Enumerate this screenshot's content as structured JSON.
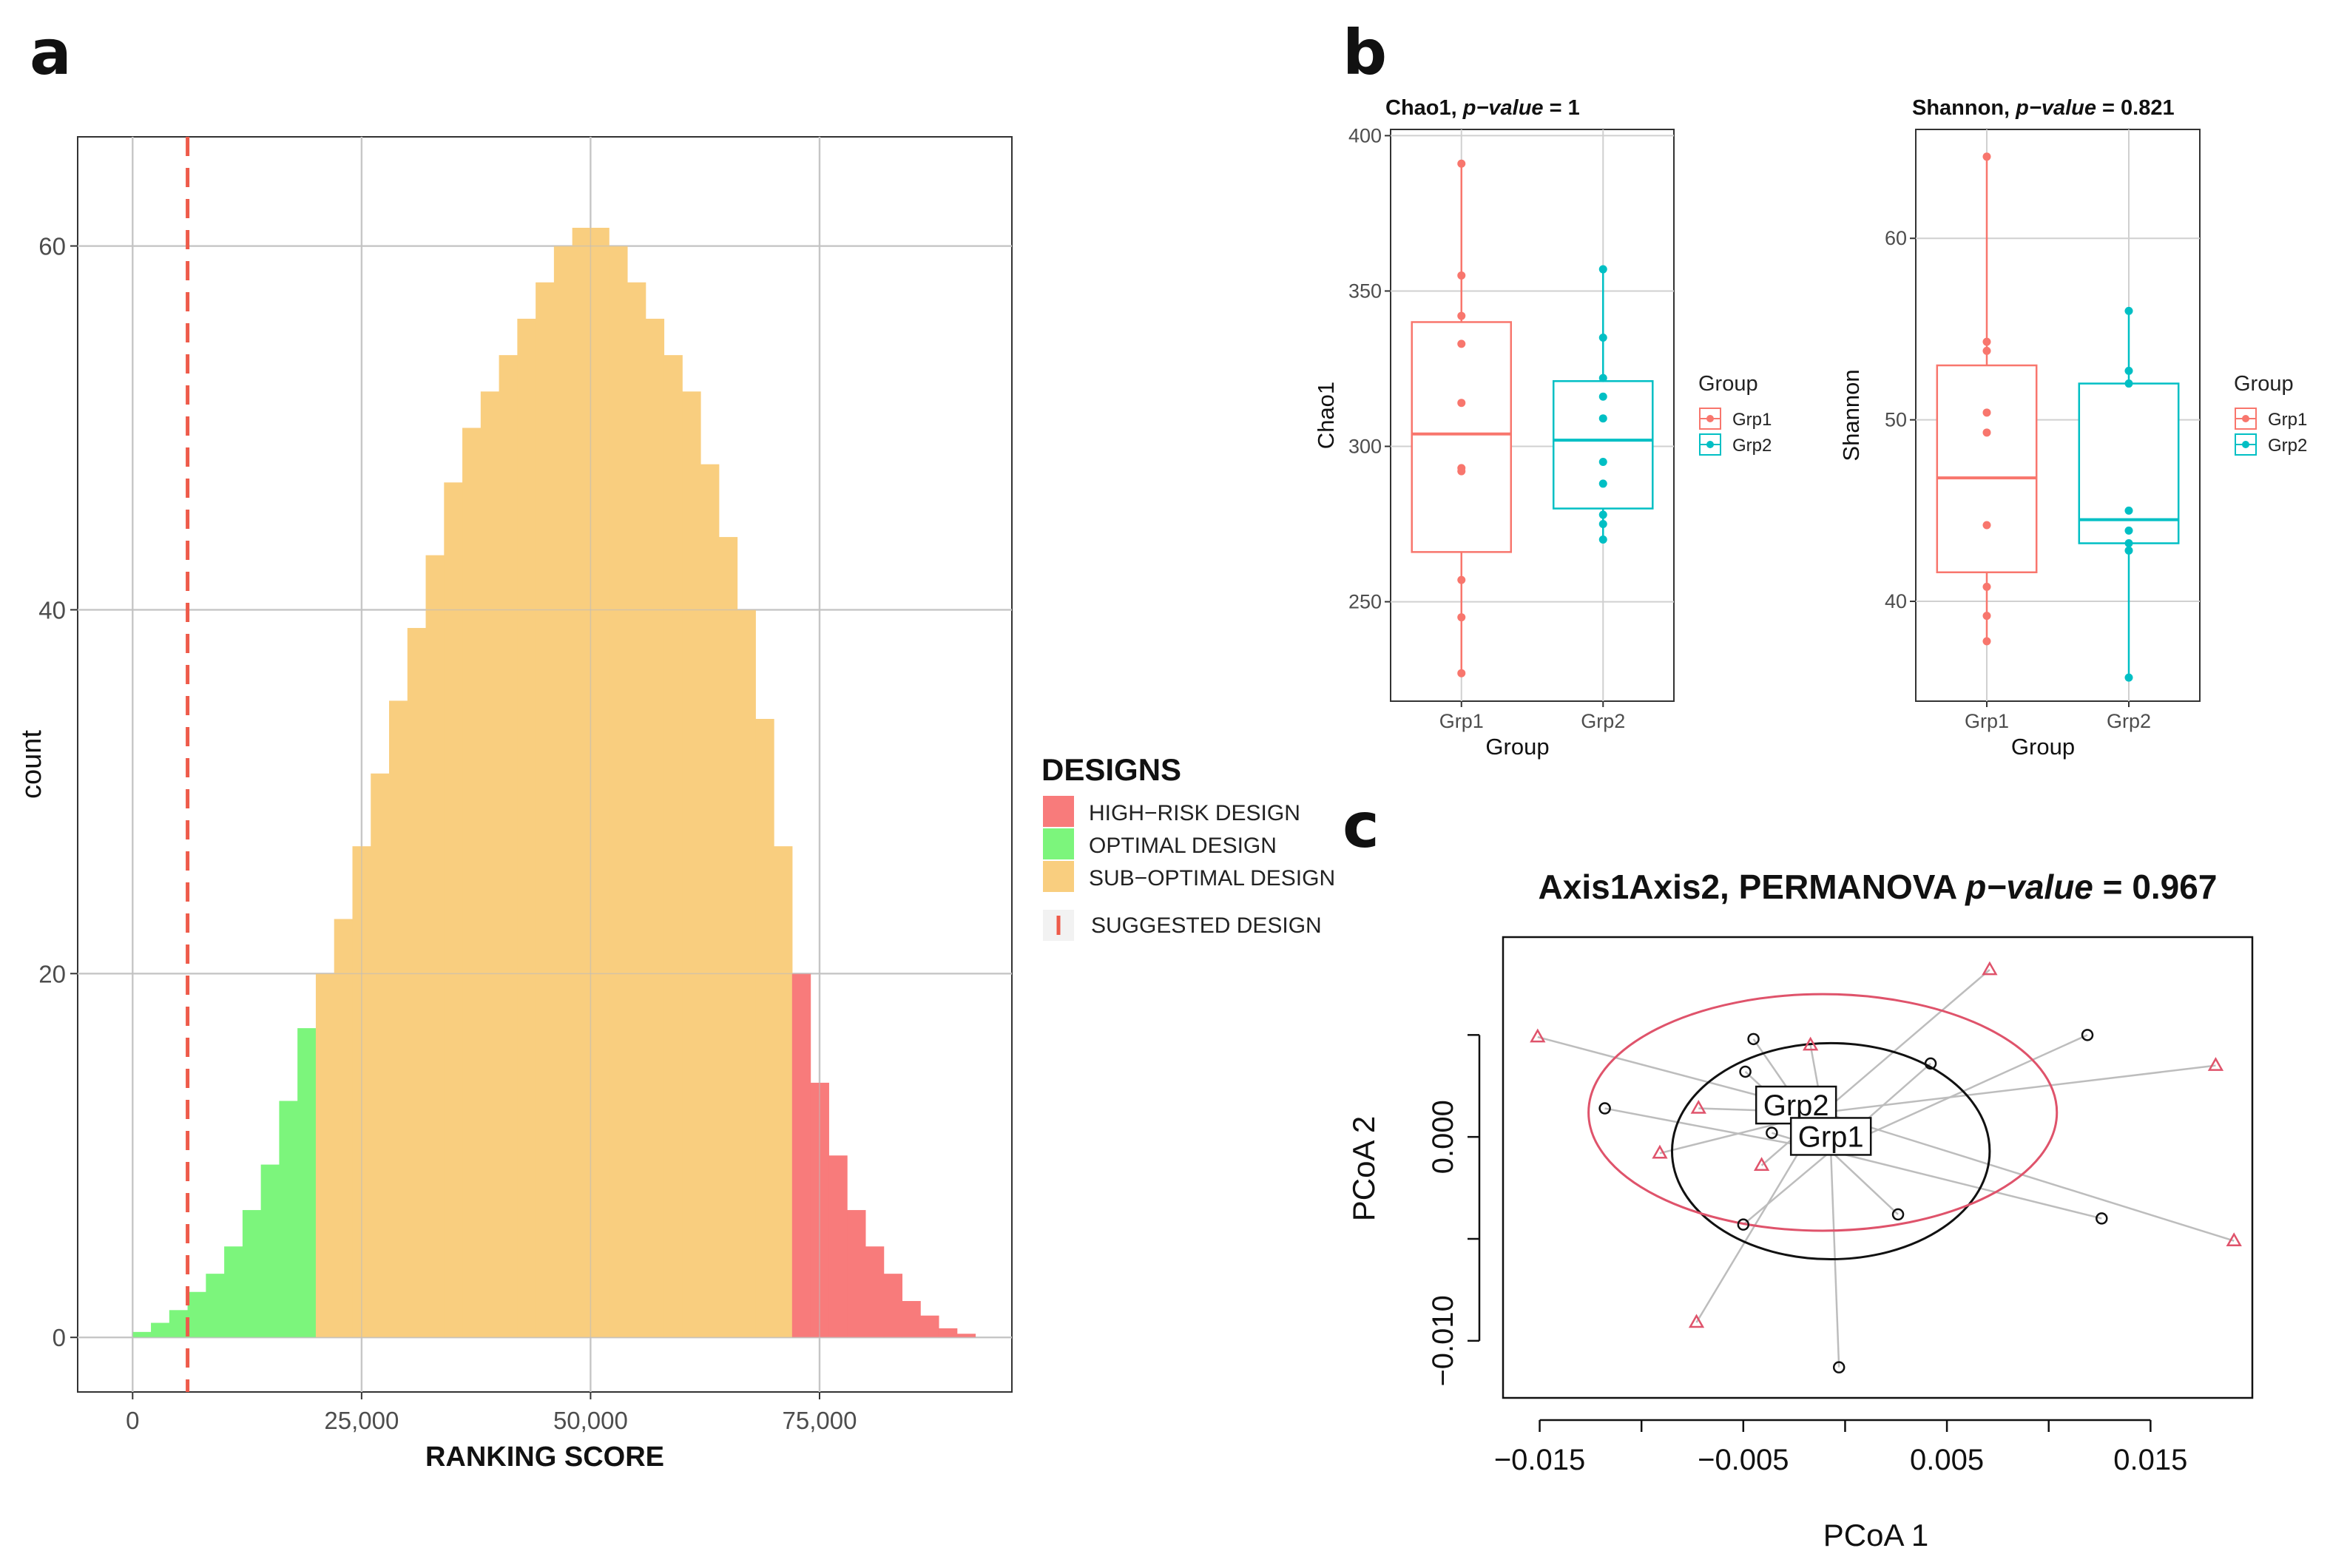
{
  "chart_data": [
    {
      "panel": "a",
      "type": "bar",
      "title": "",
      "xlabel": "RANKING SCORE",
      "ylabel": "count",
      "xlim": [
        -6000,
        96000
      ],
      "ylim": [
        -3,
        66
      ],
      "x_ticks": [
        0,
        25000,
        50000,
        75000
      ],
      "x_tick_labels": [
        "0",
        "25,000",
        "50,000",
        "75,000"
      ],
      "y_ticks": [
        0,
        20,
        40,
        60
      ],
      "y_tick_labels": [
        "0",
        "20",
        "40",
        "60"
      ],
      "grid": true,
      "suggested_design_x": 6000,
      "categories_boundaries": [
        {
          "name": "OPTIMAL DESIGN",
          "from": 1000,
          "to": 19500
        },
        {
          "name": "SUB-OPTIMAL DESIGN",
          "from": 19500,
          "to": 72500
        },
        {
          "name": "HIGH-RISK DESIGN",
          "from": 72500,
          "to": 91000
        }
      ],
      "bins": {
        "x": [
          1000,
          3000,
          5000,
          7000,
          9000,
          11000,
          13000,
          15000,
          17000,
          19000,
          21000,
          23000,
          25000,
          27000,
          29000,
          31000,
          33000,
          35000,
          37000,
          39000,
          41000,
          43000,
          45000,
          47000,
          49000,
          51000,
          53000,
          55000,
          57000,
          59000,
          61000,
          63000,
          65000,
          67000,
          69000,
          71000,
          73000,
          75000,
          77000,
          79000,
          81000,
          83000,
          85000,
          87000,
          89000,
          91000
        ],
        "count": [
          0.3,
          0.8,
          1.5,
          2.5,
          3.5,
          5,
          7,
          9.5,
          13,
          17,
          20,
          23,
          27,
          31,
          35,
          39,
          43,
          47,
          50,
          52,
          54,
          56,
          58,
          60,
          61,
          61,
          60,
          58,
          56,
          54,
          52,
          48,
          44,
          40,
          34,
          27,
          20,
          14,
          10,
          7,
          5,
          3.5,
          2,
          1.2,
          0.5,
          0.2
        ]
      },
      "legend": {
        "title": "DESIGNS",
        "placement": "right",
        "entries": [
          {
            "label": "HIGH−RISK DESIGN",
            "color": "#f87b7b"
          },
          {
            "label": "OPTIMAL DESIGN",
            "color": "#7cf57c"
          },
          {
            "label": "SUB−OPTIMAL DESIGN",
            "color": "#f9ce7f"
          },
          {
            "label": "SUGGESTED DESIGN",
            "color": "#ee5b4a"
          }
        ]
      }
    },
    {
      "panel": "b",
      "type": "box",
      "title_metric": "Chao1",
      "title_rest": ", ",
      "title_italic": "p−value",
      "title_value": " = 1",
      "xlabel": "Group",
      "ylabel": "Chao1",
      "categories": [
        "Grp1",
        "Grp2"
      ],
      "ylim": [
        218,
        402
      ],
      "y_ticks": [
        250,
        300,
        350,
        400
      ],
      "y_tick_labels": [
        "250",
        "300",
        "350",
        "400"
      ],
      "series": [
        {
          "name": "Grp1",
          "color": "#f8766d",
          "q1": 266,
          "median": 304,
          "q3": 340,
          "whisker_low": 227,
          "whisker_high": 391,
          "points": [
            391,
            355,
            342,
            333,
            314,
            293,
            292,
            257,
            245,
            227
          ]
        },
        {
          "name": "Grp2",
          "color": "#00bfc4",
          "q1": 280,
          "median": 302,
          "q3": 321,
          "whisker_low": 270,
          "whisker_high": 357,
          "points": [
            357,
            335,
            322,
            316,
            309,
            295,
            288,
            278,
            275,
            270
          ]
        }
      ],
      "legend": {
        "title": "Group",
        "placement": "right",
        "entries": [
          "Grp1",
          "Grp2"
        ]
      }
    },
    {
      "panel": "b",
      "type": "box",
      "title_metric": "Shannon",
      "title_rest": ", ",
      "title_italic": "p−value",
      "title_value": " = 0.821",
      "xlabel": "Group",
      "ylabel": "Shannon",
      "categories": [
        "Grp1",
        "Grp2"
      ],
      "ylim": [
        34.5,
        66
      ],
      "y_ticks": [
        40,
        50,
        60
      ],
      "y_tick_labels": [
        "40",
        "50",
        "60"
      ],
      "series": [
        {
          "name": "Grp1",
          "color": "#f8766d",
          "q1": 41.6,
          "median": 46.8,
          "q3": 53,
          "whisker_low": 37.8,
          "whisker_high": 64.5,
          "points": [
            64.5,
            54.3,
            53.8,
            50.4,
            49.3,
            44.2,
            40.8,
            39.2,
            37.8
          ]
        },
        {
          "name": "Grp2",
          "color": "#00bfc4",
          "q1": 43.2,
          "median": 44.5,
          "q3": 52,
          "whisker_low": 35.8,
          "whisker_high": 56,
          "points": [
            56,
            52.7,
            52,
            45,
            43.9,
            43.2,
            42.8,
            35.8
          ]
        }
      ],
      "legend": {
        "title": "Group",
        "placement": "right",
        "entries": [
          "Grp1",
          "Grp2"
        ]
      }
    },
    {
      "panel": "c",
      "type": "scatter",
      "title_main": "Axis1Axis2, PERMANOVA ",
      "title_italic": "p−value",
      "title_value": " = 0.967",
      "xlabel": "PCoA 1",
      "ylabel": "PCoA 2",
      "xlim": [
        -0.0168,
        0.02
      ],
      "ylim": [
        -0.0128,
        0.0098
      ],
      "x_ticks": [
        -0.015,
        -0.01,
        -0.005,
        0,
        0.005,
        0.01,
        0.015
      ],
      "x_tick_labels": [
        "−0.015",
        "",
        "−0.005",
        "",
        "0.005",
        "",
        "0.015"
      ],
      "y_ticks": [
        -0.01,
        -0.005,
        0,
        0.005
      ],
      "y_tick_labels": [
        "−0.010",
        "",
        "0.000",
        ""
      ],
      "series": [
        {
          "name": "Grp1",
          "marker": "circle",
          "color": "#111111",
          "centroid": [
            -0.0007,
            -0.0007
          ],
          "ellipse": {
            "rx": 0.0078,
            "ry": 0.0053
          },
          "points": [
            [
              -0.0045,
              0.0048
            ],
            [
              -0.0049,
              0.0032
            ],
            [
              -0.0118,
              0.0014
            ],
            [
              -0.0036,
              0.0002
            ],
            [
              0.0042,
              0.0036
            ],
            [
              0.0119,
              0.005
            ],
            [
              0.0026,
              -0.0038
            ],
            [
              0.0126,
              -0.004
            ],
            [
              -0.005,
              -0.0043
            ],
            [
              -0.0003,
              -0.0113
            ]
          ]
        },
        {
          "name": "Grp2",
          "marker": "triangle",
          "color": "#df536b",
          "centroid": [
            -0.0011,
            0.0012
          ],
          "ellipse": {
            "rx": 0.0115,
            "ry": 0.0058
          },
          "points": [
            [
              -0.0151,
              0.0049
            ],
            [
              -0.0072,
              0.0014
            ],
            [
              -0.0091,
              -0.0008
            ],
            [
              -0.0017,
              0.0045
            ],
            [
              -0.0041,
              -0.0014
            ],
            [
              0.0071,
              0.0082
            ],
            [
              0.0182,
              0.0035
            ],
            [
              0.0191,
              -0.0051
            ],
            [
              -0.0073,
              -0.0091
            ]
          ]
        }
      ],
      "labels": [
        {
          "text": "Grp2"
        },
        {
          "text": "Grp1"
        }
      ]
    }
  ],
  "panel_letters": {
    "a": "a",
    "b": "b",
    "c": "c"
  }
}
